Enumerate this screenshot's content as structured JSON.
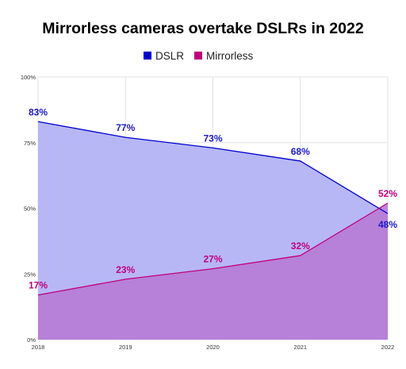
{
  "chart_data": {
    "type": "area",
    "title": "Mirrorless cameras overtake DSLRs in 2022",
    "x": [
      "2018",
      "2019",
      "2020",
      "2021",
      "2022"
    ],
    "ylim": [
      0,
      100
    ],
    "y_ticks": [
      "0%",
      "25%",
      "50%",
      "75%",
      "100%"
    ],
    "grid": true,
    "legend_position": "top-center",
    "series": [
      {
        "name": "DSLR",
        "values": [
          83,
          77,
          73,
          68,
          48
        ],
        "labels": [
          "83%",
          "77%",
          "73%",
          "68%",
          "48%"
        ],
        "line_color": "#0000cc",
        "fill_color": "#b3b3f5",
        "label_color": "#1a1acc"
      },
      {
        "name": "Mirrorless",
        "values": [
          17,
          23,
          27,
          32,
          52
        ],
        "labels": [
          "17%",
          "23%",
          "27%",
          "32%",
          "52%"
        ],
        "line_color": "#c0007a",
        "fill_color": "#b77ad6",
        "label_color": "#c0007a"
      }
    ]
  }
}
